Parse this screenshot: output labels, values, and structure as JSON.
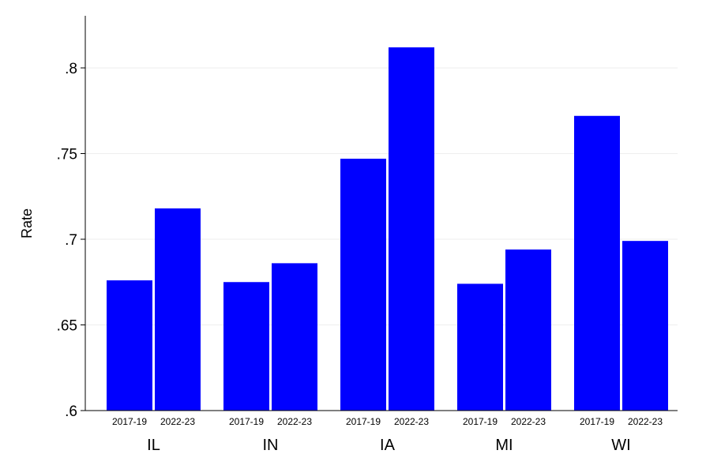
{
  "chart_data": {
    "type": "bar",
    "ylabel": "Rate",
    "ylim": [
      0.6,
      0.83
    ],
    "yticks": [
      {
        "value": 0.6,
        "label": ".6"
      },
      {
        "value": 0.65,
        "label": ".65"
      },
      {
        "value": 0.7,
        "label": ".7"
      },
      {
        "value": 0.75,
        "label": ".75"
      },
      {
        "value": 0.8,
        "label": ".8"
      }
    ],
    "grid": true,
    "periods": [
      "2017-19",
      "2022-23"
    ],
    "groups": [
      {
        "state": "IL",
        "values": [
          0.676,
          0.718
        ]
      },
      {
        "state": "IN",
        "values": [
          0.675,
          0.686
        ]
      },
      {
        "state": "IA",
        "values": [
          0.747,
          0.812
        ]
      },
      {
        "state": "MI",
        "values": [
          0.674,
          0.694
        ]
      },
      {
        "state": "WI",
        "values": [
          0.772,
          0.699
        ]
      }
    ],
    "bar_color": "#0000ff"
  }
}
